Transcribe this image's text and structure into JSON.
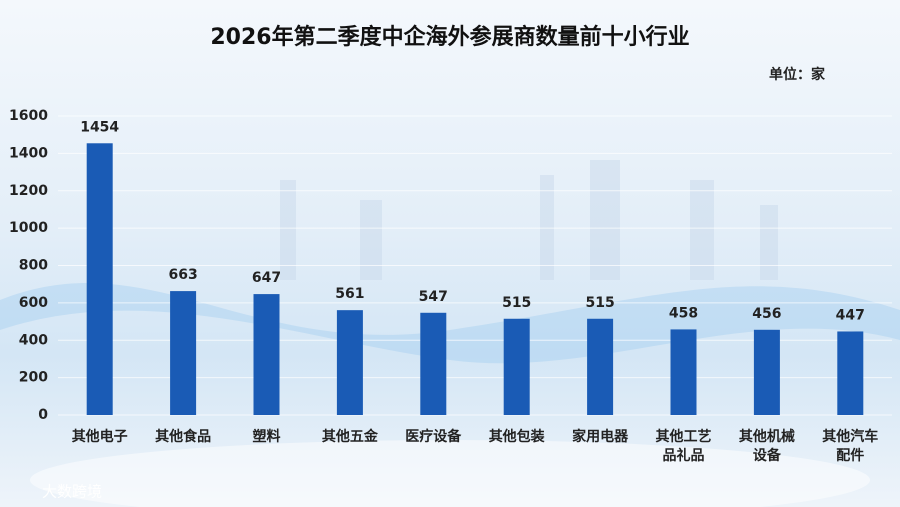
{
  "chart_data": {
    "type": "bar",
    "title": "2026年第二季度中企海外参展商数量前十小行业",
    "unit": "单位：家",
    "categories": [
      "其他电子",
      "其他食品",
      "塑料",
      "其他五金",
      "医疗设备",
      "其他包装",
      "家用电器",
      "其他工艺品礼品",
      "其他机械设备",
      "其他汽车配件"
    ],
    "values": [
      1454,
      663,
      647,
      561,
      547,
      515,
      515,
      458,
      456,
      447
    ],
    "color": "#1a5bb5",
    "ylim": [
      0,
      1600
    ],
    "yticks": [
      0,
      200,
      400,
      600,
      800,
      1000,
      1200,
      1400,
      1600
    ],
    "grid": true,
    "watermark": "大数跨境"
  }
}
